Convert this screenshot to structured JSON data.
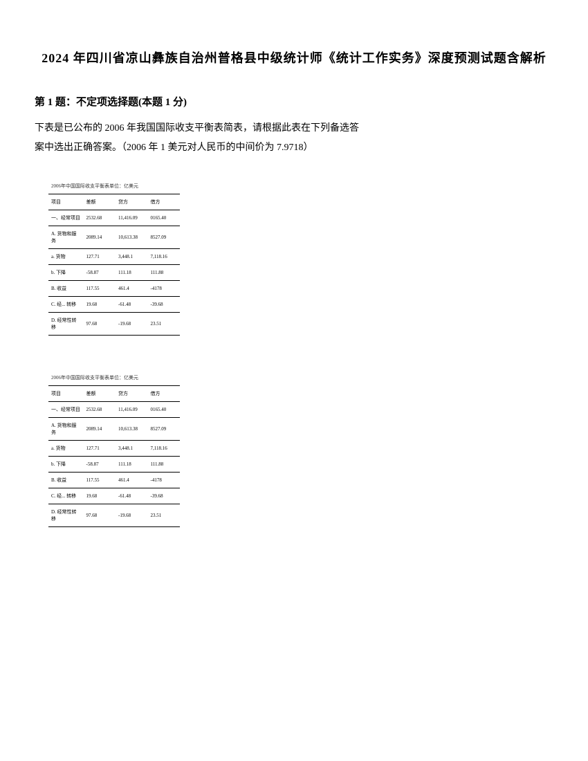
{
  "title": "2024 年四川省凉山彝族自治州普格县中级统计师《统计工作实务》深度预测试题含解析",
  "question": {
    "header": "第 1 题：不定项选择题(本题 1 分)",
    "line1": "下表是已公布的 2006 年我国国际收支平衡表简表，请根据此表在下列备选答",
    "line2": "案中选出正确答案。（2006 年 1 美元对人民币的中间价为 7.9718）"
  },
  "table": {
    "caption": "2006年中国国际收支平衡表单位：亿美元",
    "headers": [
      "项目",
      "差额",
      "贷方",
      "借方"
    ],
    "rows": [
      [
        "一、经常项目",
        "2532.68",
        "11,416.09",
        "0165.40"
      ],
      [
        "A. 货物和服务",
        "2089.14",
        "10,613.38",
        "8527.09"
      ],
      [
        "a. 货物",
        "127.71",
        "3,448.1",
        "7,118.16"
      ],
      [
        "b. 下降",
        "-58.87",
        "111.18",
        "111.88"
      ],
      [
        "B. 收益",
        "117.55",
        "461.4",
        "-4178"
      ],
      [
        "C. 经... 转移",
        "19.68",
        "-61.48",
        "-39.68"
      ],
      [
        "D. 经常性转移",
        "97.68",
        "-19.68",
        "23.51"
      ]
    ]
  }
}
